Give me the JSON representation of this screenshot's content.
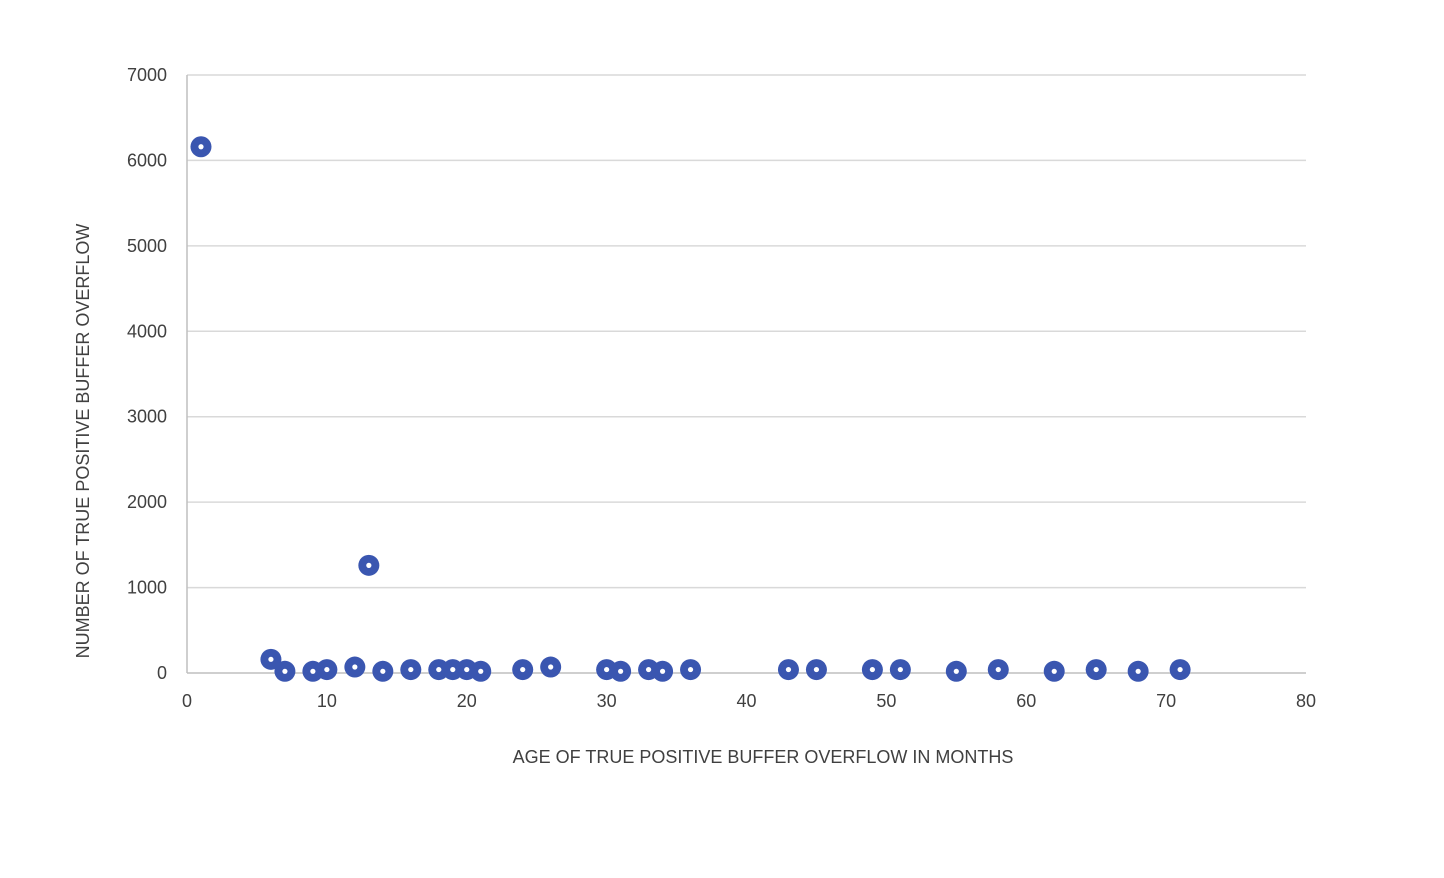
{
  "chart_data": {
    "type": "scatter",
    "title": "",
    "xlabel": "AGE OF TRUE POSITIVE BUFFER OVERFLOW IN MONTHS",
    "ylabel": "NUMBER OF TRUE POSITIVE BUFFER OVERFLOW",
    "xlim": [
      0,
      80
    ],
    "ylim": [
      0,
      7000
    ],
    "xticks": [
      0,
      10,
      20,
      30,
      40,
      50,
      60,
      70,
      80
    ],
    "yticks": [
      0,
      1000,
      2000,
      3000,
      4000,
      5000,
      6000,
      7000
    ],
    "grid": {
      "horizontal": true,
      "vertical": false
    },
    "legend": "none",
    "marker_color": "#3a56b0",
    "series": [
      {
        "points": [
          [
            1,
            6160
          ],
          [
            6,
            160
          ],
          [
            7,
            20
          ],
          [
            9,
            20
          ],
          [
            10,
            40
          ],
          [
            12,
            70
          ],
          [
            13,
            1260
          ],
          [
            14,
            20
          ],
          [
            16,
            40
          ],
          [
            18,
            40
          ],
          [
            19,
            40
          ],
          [
            20,
            40
          ],
          [
            21,
            20
          ],
          [
            24,
            40
          ],
          [
            26,
            70
          ],
          [
            30,
            40
          ],
          [
            31,
            20
          ],
          [
            33,
            40
          ],
          [
            34,
            20
          ],
          [
            36,
            40
          ],
          [
            43,
            40
          ],
          [
            45,
            40
          ],
          [
            49,
            40
          ],
          [
            51,
            40
          ],
          [
            55,
            20
          ],
          [
            58,
            40
          ],
          [
            62,
            20
          ],
          [
            65,
            40
          ],
          [
            68,
            20
          ],
          [
            71,
            40
          ]
        ]
      }
    ]
  }
}
